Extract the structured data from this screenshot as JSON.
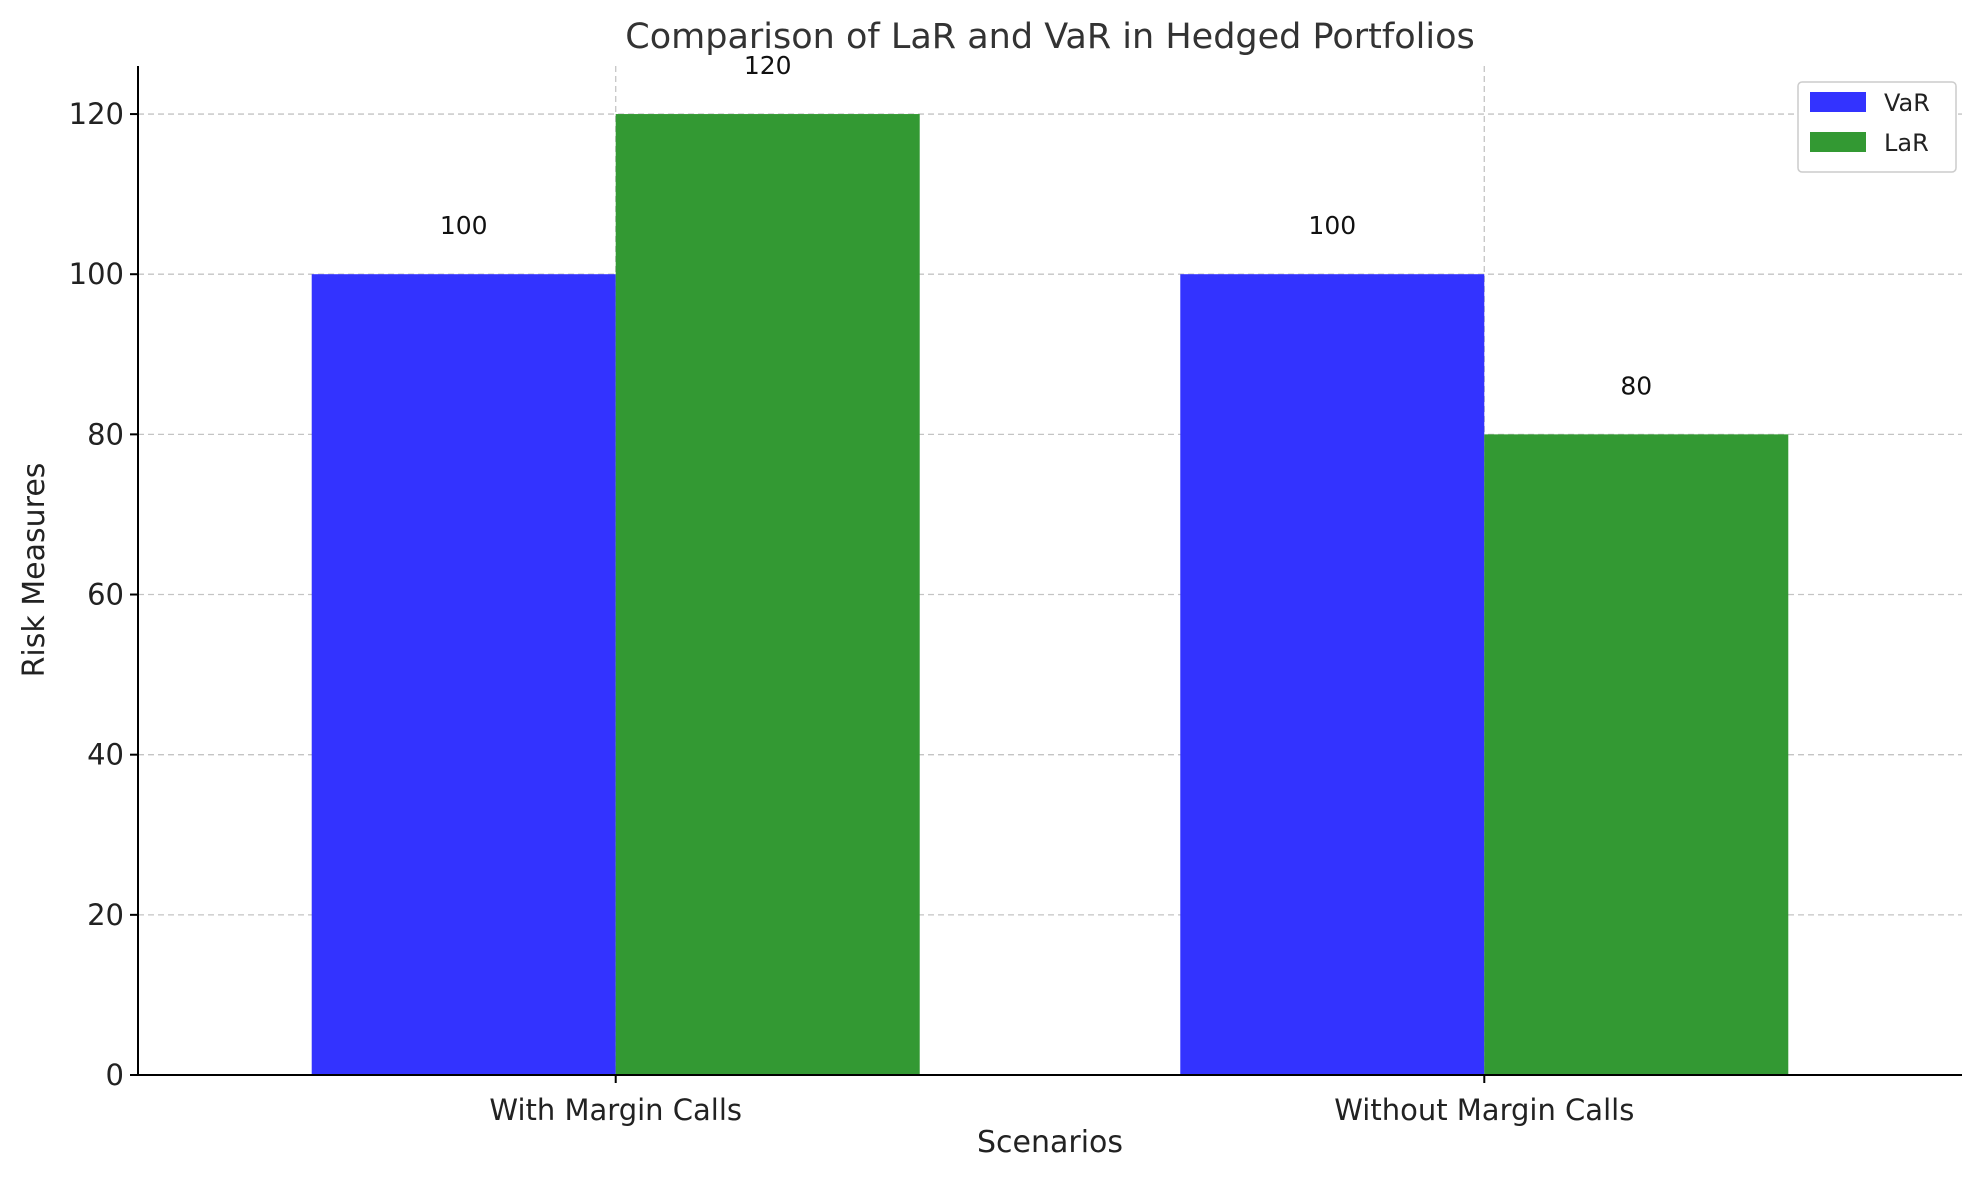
{
  "chart_data": {
    "type": "bar",
    "title": "Comparison of LaR and VaR in Hedged Portfolios",
    "xlabel": "Scenarios",
    "ylabel": "Risk Measures",
    "categories": [
      "With Margin Calls",
      "Without Margin Calls"
    ],
    "series": [
      {
        "name": "VaR",
        "color": "#3333ff",
        "values": [
          100,
          100
        ]
      },
      {
        "name": "LaR",
        "color": "#339933",
        "values": [
          120,
          80
        ]
      }
    ],
    "ylim": [
      0,
      126
    ],
    "yticks": [
      0,
      20,
      40,
      60,
      80,
      100,
      120
    ],
    "grid": true,
    "legend_position": "top-right",
    "data_labels": true
  }
}
